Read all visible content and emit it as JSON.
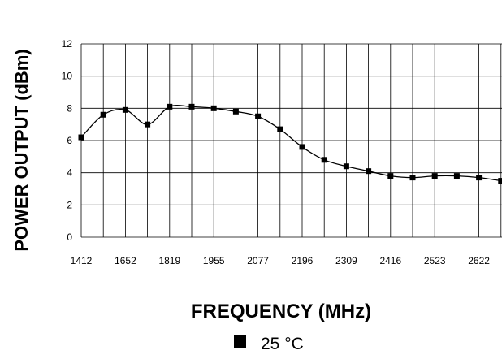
{
  "chart_data": {
    "type": "line",
    "xlabel": "FREQUENCY (MHz)",
    "ylabel": "POWER OUTPUT (dBm)",
    "x_tick_labels": [
      "1412",
      "1652",
      "1819",
      "1955",
      "2077",
      "2196",
      "2309",
      "2416",
      "2523",
      "2622"
    ],
    "y_ticks": [
      0,
      2,
      4,
      6,
      8,
      10,
      12
    ],
    "ylim": [
      0,
      12
    ],
    "grid": true,
    "legend_position": "bottom-center",
    "series": [
      {
        "name": "25 °C",
        "color": "#000000",
        "marker": "square",
        "values": [
          6.2,
          7.6,
          7.9,
          7.0,
          8.1,
          8.1,
          8.0,
          7.8,
          7.5,
          6.7,
          5.6,
          4.8,
          4.4,
          4.1,
          3.8,
          3.7,
          3.8,
          3.8,
          3.7,
          3.5
        ]
      }
    ]
  }
}
